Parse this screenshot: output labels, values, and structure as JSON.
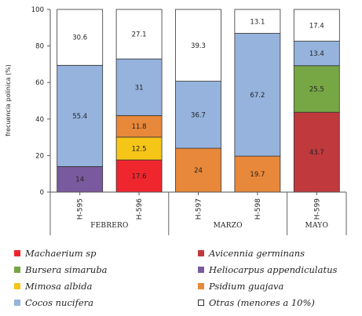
{
  "chart_data": {
    "type": "bar",
    "stacked": true,
    "ylabel": "frecuencia polínica (%)",
    "ylim": [
      0,
      100
    ],
    "yticks": [
      0,
      20,
      40,
      60,
      80,
      100
    ],
    "categories": [
      "H-595",
      "H-596",
      "H-597",
      "H-598",
      "H-599"
    ],
    "groups": [
      {
        "label": "FEBRERO",
        "categories": [
          "H-595",
          "H-596"
        ]
      },
      {
        "label": "MARZO",
        "categories": [
          "H-597",
          "H-598"
        ]
      },
      {
        "label": "MAYO",
        "categories": [
          "H-599"
        ]
      }
    ],
    "series": [
      {
        "name": "Machaerium sp",
        "color": "#f0262e",
        "values": [
          0,
          17.6,
          0,
          0,
          0
        ]
      },
      {
        "name": "Avicennia germinans",
        "color": "#c0393d",
        "values": [
          0,
          0,
          0,
          0,
          43.7
        ]
      },
      {
        "name": "Heliocarpus appendiculatus",
        "color": "#7a5a9e",
        "values": [
          14,
          0,
          0,
          0,
          0
        ]
      },
      {
        "name": "Mimosa albida",
        "color": "#f5c518",
        "values": [
          0,
          12.5,
          0,
          0,
          0
        ]
      },
      {
        "name": "Psidium guajava",
        "color": "#e8883a",
        "values": [
          0,
          11.8,
          24,
          19.7,
          0
        ]
      },
      {
        "name": "Bursera simaruba",
        "color": "#77a645",
        "values": [
          0,
          0,
          0,
          0,
          25.5
        ]
      },
      {
        "name": "Cocos nucifera",
        "color": "#95b3dd",
        "values": [
          55.4,
          31,
          36.7,
          67.2,
          13.4
        ]
      },
      {
        "name": "Otras (menores a 10%)",
        "color": "#ffffff",
        "values": [
          30.6,
          27.1,
          39.3,
          13.1,
          17.4
        ]
      }
    ],
    "legend": [
      [
        "Machaerium sp",
        "Avicennia germinans"
      ],
      [
        "Bursera simaruba",
        "Heliocarpus appendiculatus"
      ],
      [
        "Mimosa albida",
        "Psidium guajava"
      ],
      [
        "Cocos nucifera",
        "Otras (menores a 10%)"
      ]
    ]
  }
}
